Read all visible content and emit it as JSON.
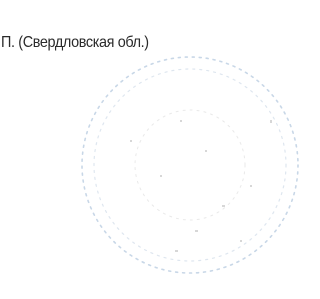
{
  "text": "П. (Свердловская обл.)"
}
